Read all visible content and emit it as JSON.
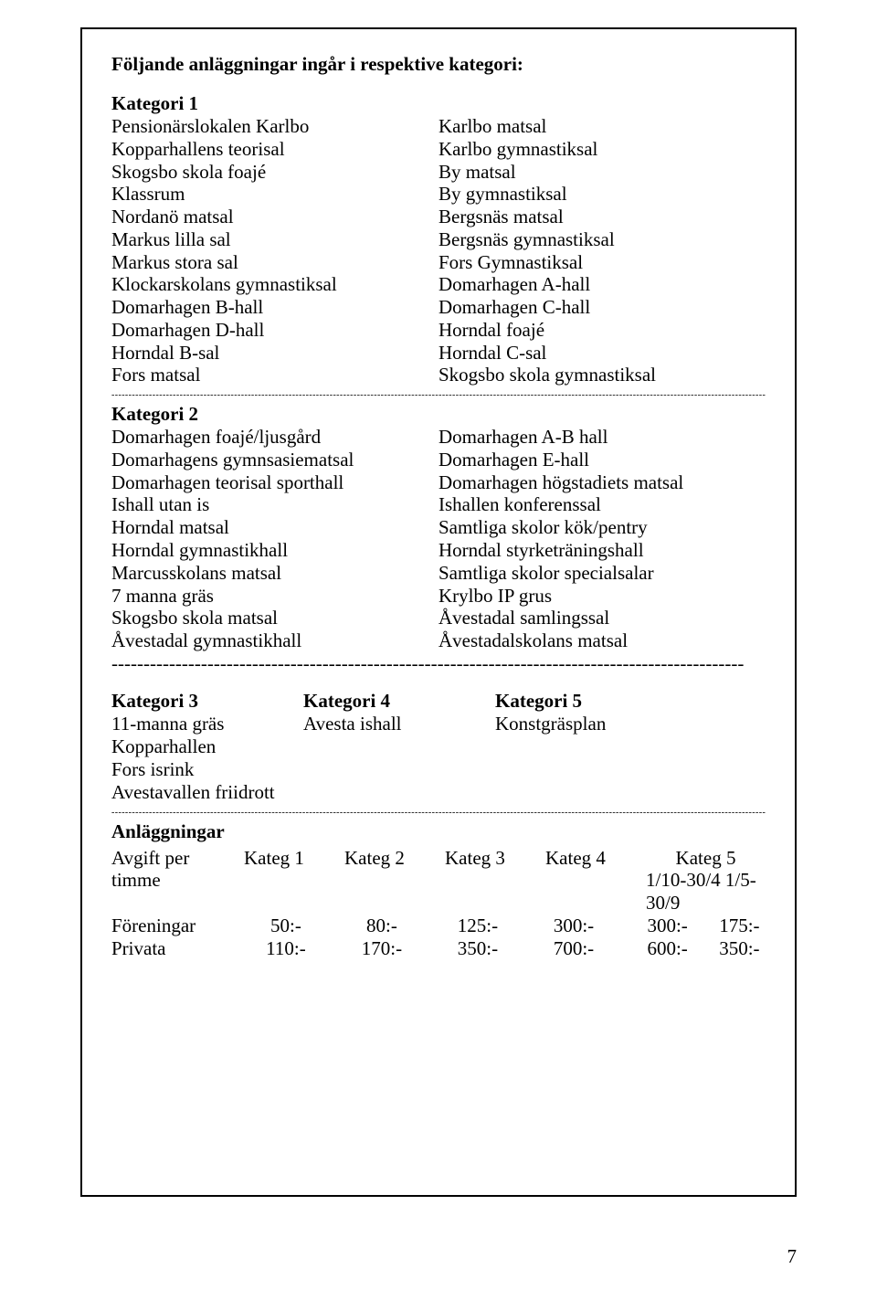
{
  "title": "Följande anläggningar ingår i respektive kategori:",
  "cat1": {
    "label": "Kategori 1",
    "left": [
      "Pensionärslokalen Karlbo",
      "Kopparhallens teorisal",
      "Skogsbo skola foajé",
      "Klassrum",
      "Nordanö matsal",
      "Markus lilla sal",
      "Markus stora sal",
      "Klockarskolans gymnastiksal",
      "Domarhagen B-hall",
      "Domarhagen D-hall",
      "Horndal B-sal",
      "Fors matsal"
    ],
    "right": [
      "Karlbo matsal",
      "Karlbo gymnastiksal",
      "By matsal",
      "By gymnastiksal",
      "Bergsnäs matsal",
      "Bergsnäs gymnastiksal",
      "Fors Gymnastiksal",
      "Domarhagen A-hall",
      "Domarhagen C-hall",
      "Horndal foajé",
      "Horndal C-sal",
      "Skogsbo skola gymnastiksal"
    ]
  },
  "cat2": {
    "label": "Kategori 2",
    "left": [
      "Domarhagen foajé/ljusgård",
      "Domarhagens gymnsasiematsal",
      "Domarhagen teorisal sporthall",
      "Ishall utan is",
      "Horndal matsal",
      "Horndal gymnastikhall",
      "Marcusskolans matsal",
      "7 manna gräs",
      "Skogsbo skola matsal",
      "Åvestadal gymnastikhall"
    ],
    "right": [
      "Domarhagen A-B hall",
      "Domarhagen E-hall",
      "Domarhagen högstadiets matsal",
      "Ishallen konferenssal",
      "Samtliga skolor kök/pentry",
      "Horndal styrketräningshall",
      "Samtliga skolor specialsalar",
      "Krylbo IP grus",
      "Åvestadal samlingssal",
      "Åvestadalskolans matsal"
    ]
  },
  "cat345": {
    "heads": [
      "Kategori 3",
      "Kategori 4",
      "Kategori 5"
    ],
    "col3": [
      "11-manna gräs",
      "Kopparhallen",
      "Fors isrink",
      "Avestavallen friidrott"
    ],
    "col4": [
      "Avesta ishall"
    ],
    "col5": [
      "Konstgräsplan"
    ]
  },
  "anl": "Anläggningar",
  "priceTable": {
    "headerRow": [
      "Avgift per",
      "Kateg 1",
      "Kateg 2",
      "Kateg 3",
      "Kateg 4",
      "Kateg 5"
    ],
    "row2": [
      "timme",
      "",
      "",
      "",
      "",
      "1/10-30/4 1/5-30/9"
    ],
    "rows": [
      {
        "label": "Föreningar",
        "v": [
          "50:-",
          "80:-",
          "125:-",
          "300:-",
          "300:-",
          "175:-"
        ]
      },
      {
        "label": "Privata",
        "v": [
          "110:-",
          "170:-",
          "350:-",
          "700:-",
          "600:-",
          "350:-"
        ]
      }
    ]
  },
  "pageNumber": "7"
}
